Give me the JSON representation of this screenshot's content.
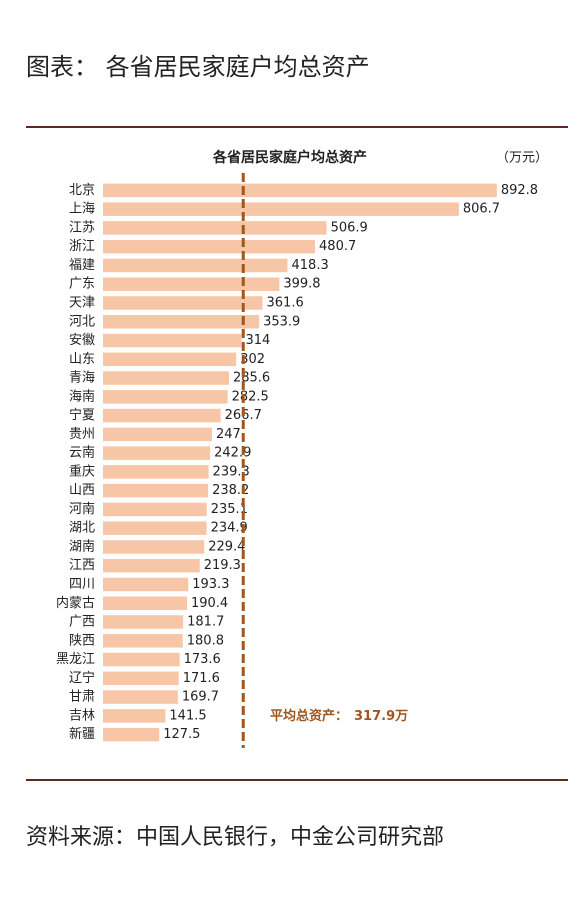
{
  "header": "图表：  各省居民家庭户均总资产",
  "source": "资料来源：中国人民银行，中金公司研究部",
  "chart_data": {
    "type": "bar",
    "orientation": "horizontal",
    "title": "各省居民家庭户均总资产",
    "unit": "（万元）",
    "categories": [
      "北京",
      "上海",
      "江苏",
      "浙江",
      "福建",
      "广东",
      "天津",
      "河北",
      "安徽",
      "山东",
      "青海",
      "海南",
      "宁夏",
      "贵州",
      "云南",
      "重庆",
      "山西",
      "河南",
      "湖北",
      "湖南",
      "江西",
      "四川",
      "内蒙古",
      "广西",
      "陕西",
      "黑龙江",
      "辽宁",
      "甘肃",
      "吉林",
      "新疆"
    ],
    "values": [
      892.8,
      806.7,
      506.9,
      480.7,
      418.3,
      399.8,
      361.6,
      353.9,
      314,
      302,
      285.6,
      282.5,
      266.7,
      247,
      242.9,
      239.3,
      238.2,
      235.1,
      234.9,
      229.4,
      219.3,
      193.3,
      190.4,
      181.7,
      180.8,
      173.6,
      171.6,
      169.7,
      141.5,
      127.5
    ],
    "color": "#f7c6a6",
    "xlim": [
      0,
      900
    ],
    "annotation": "平均总资产：",
    "average": {
      "value": 317.9,
      "label": "317.9万"
    },
    "average_color": "#a0561c"
  }
}
